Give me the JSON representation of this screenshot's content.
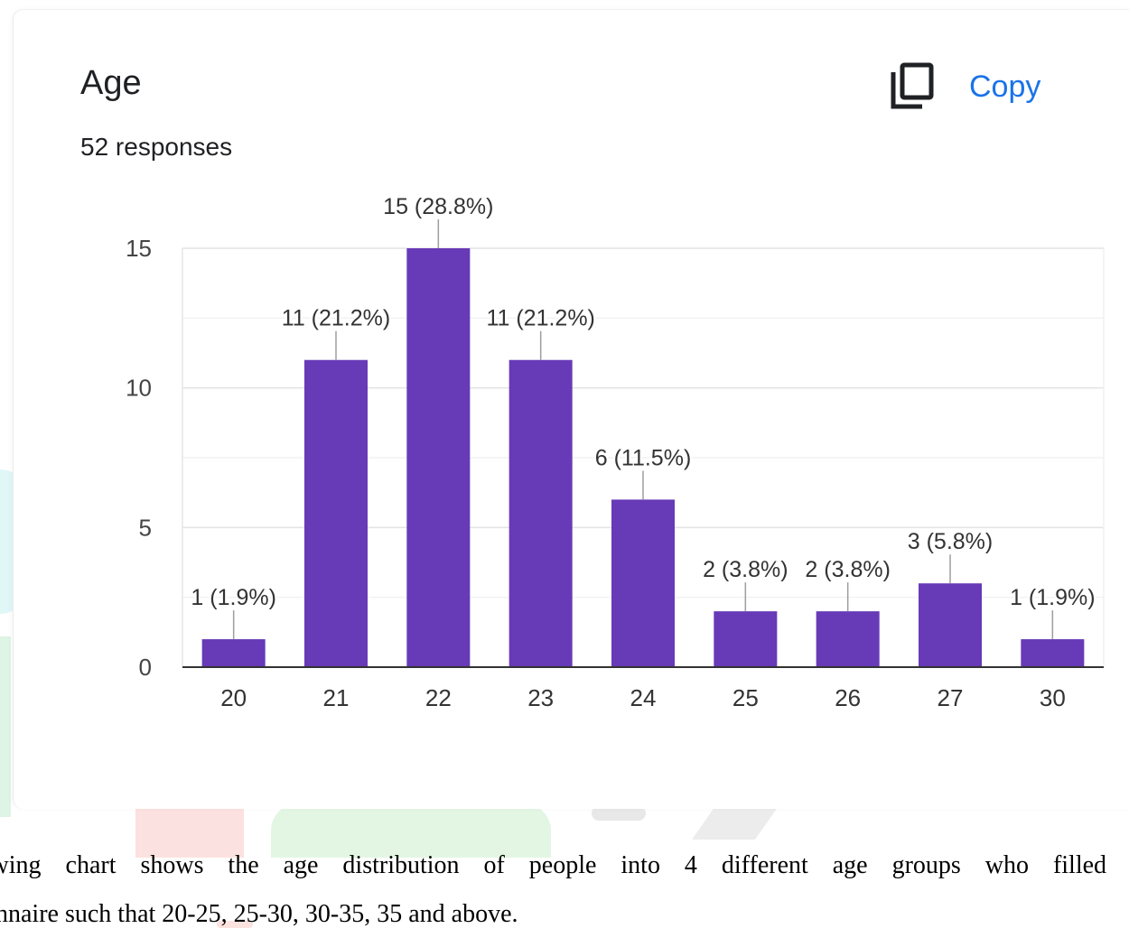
{
  "card": {
    "title": "Age",
    "subtitle": "52 responses",
    "copy_label": "Copy",
    "copy_icon": "copy-icon",
    "accent_color": "#1a73e8"
  },
  "chart_data": {
    "type": "bar",
    "categories": [
      "20",
      "21",
      "22",
      "23",
      "24",
      "25",
      "26",
      "27",
      "30"
    ],
    "values": [
      1,
      11,
      15,
      11,
      6,
      2,
      2,
      3,
      1
    ],
    "data_labels": [
      "1 (1.9%)",
      "11 (21.2%)",
      "15 (28.8%)",
      "11 (21.2%)",
      "6 (11.5%)",
      "2 (3.8%)",
      "2 (3.8%)",
      "3 (5.8%)",
      "1 (1.9%)"
    ],
    "yticks": [
      "0",
      "5",
      "10",
      "15"
    ],
    "ylim": [
      0,
      15
    ],
    "bar_color": "#673ab7",
    "grid": true
  },
  "caption": {
    "line1": "llowing chart shows the age distribution of people into 4 different age groups who filled ou",
    "line2": "nnaire such that 20-25, 25-30, 30-35, 35 and above."
  }
}
